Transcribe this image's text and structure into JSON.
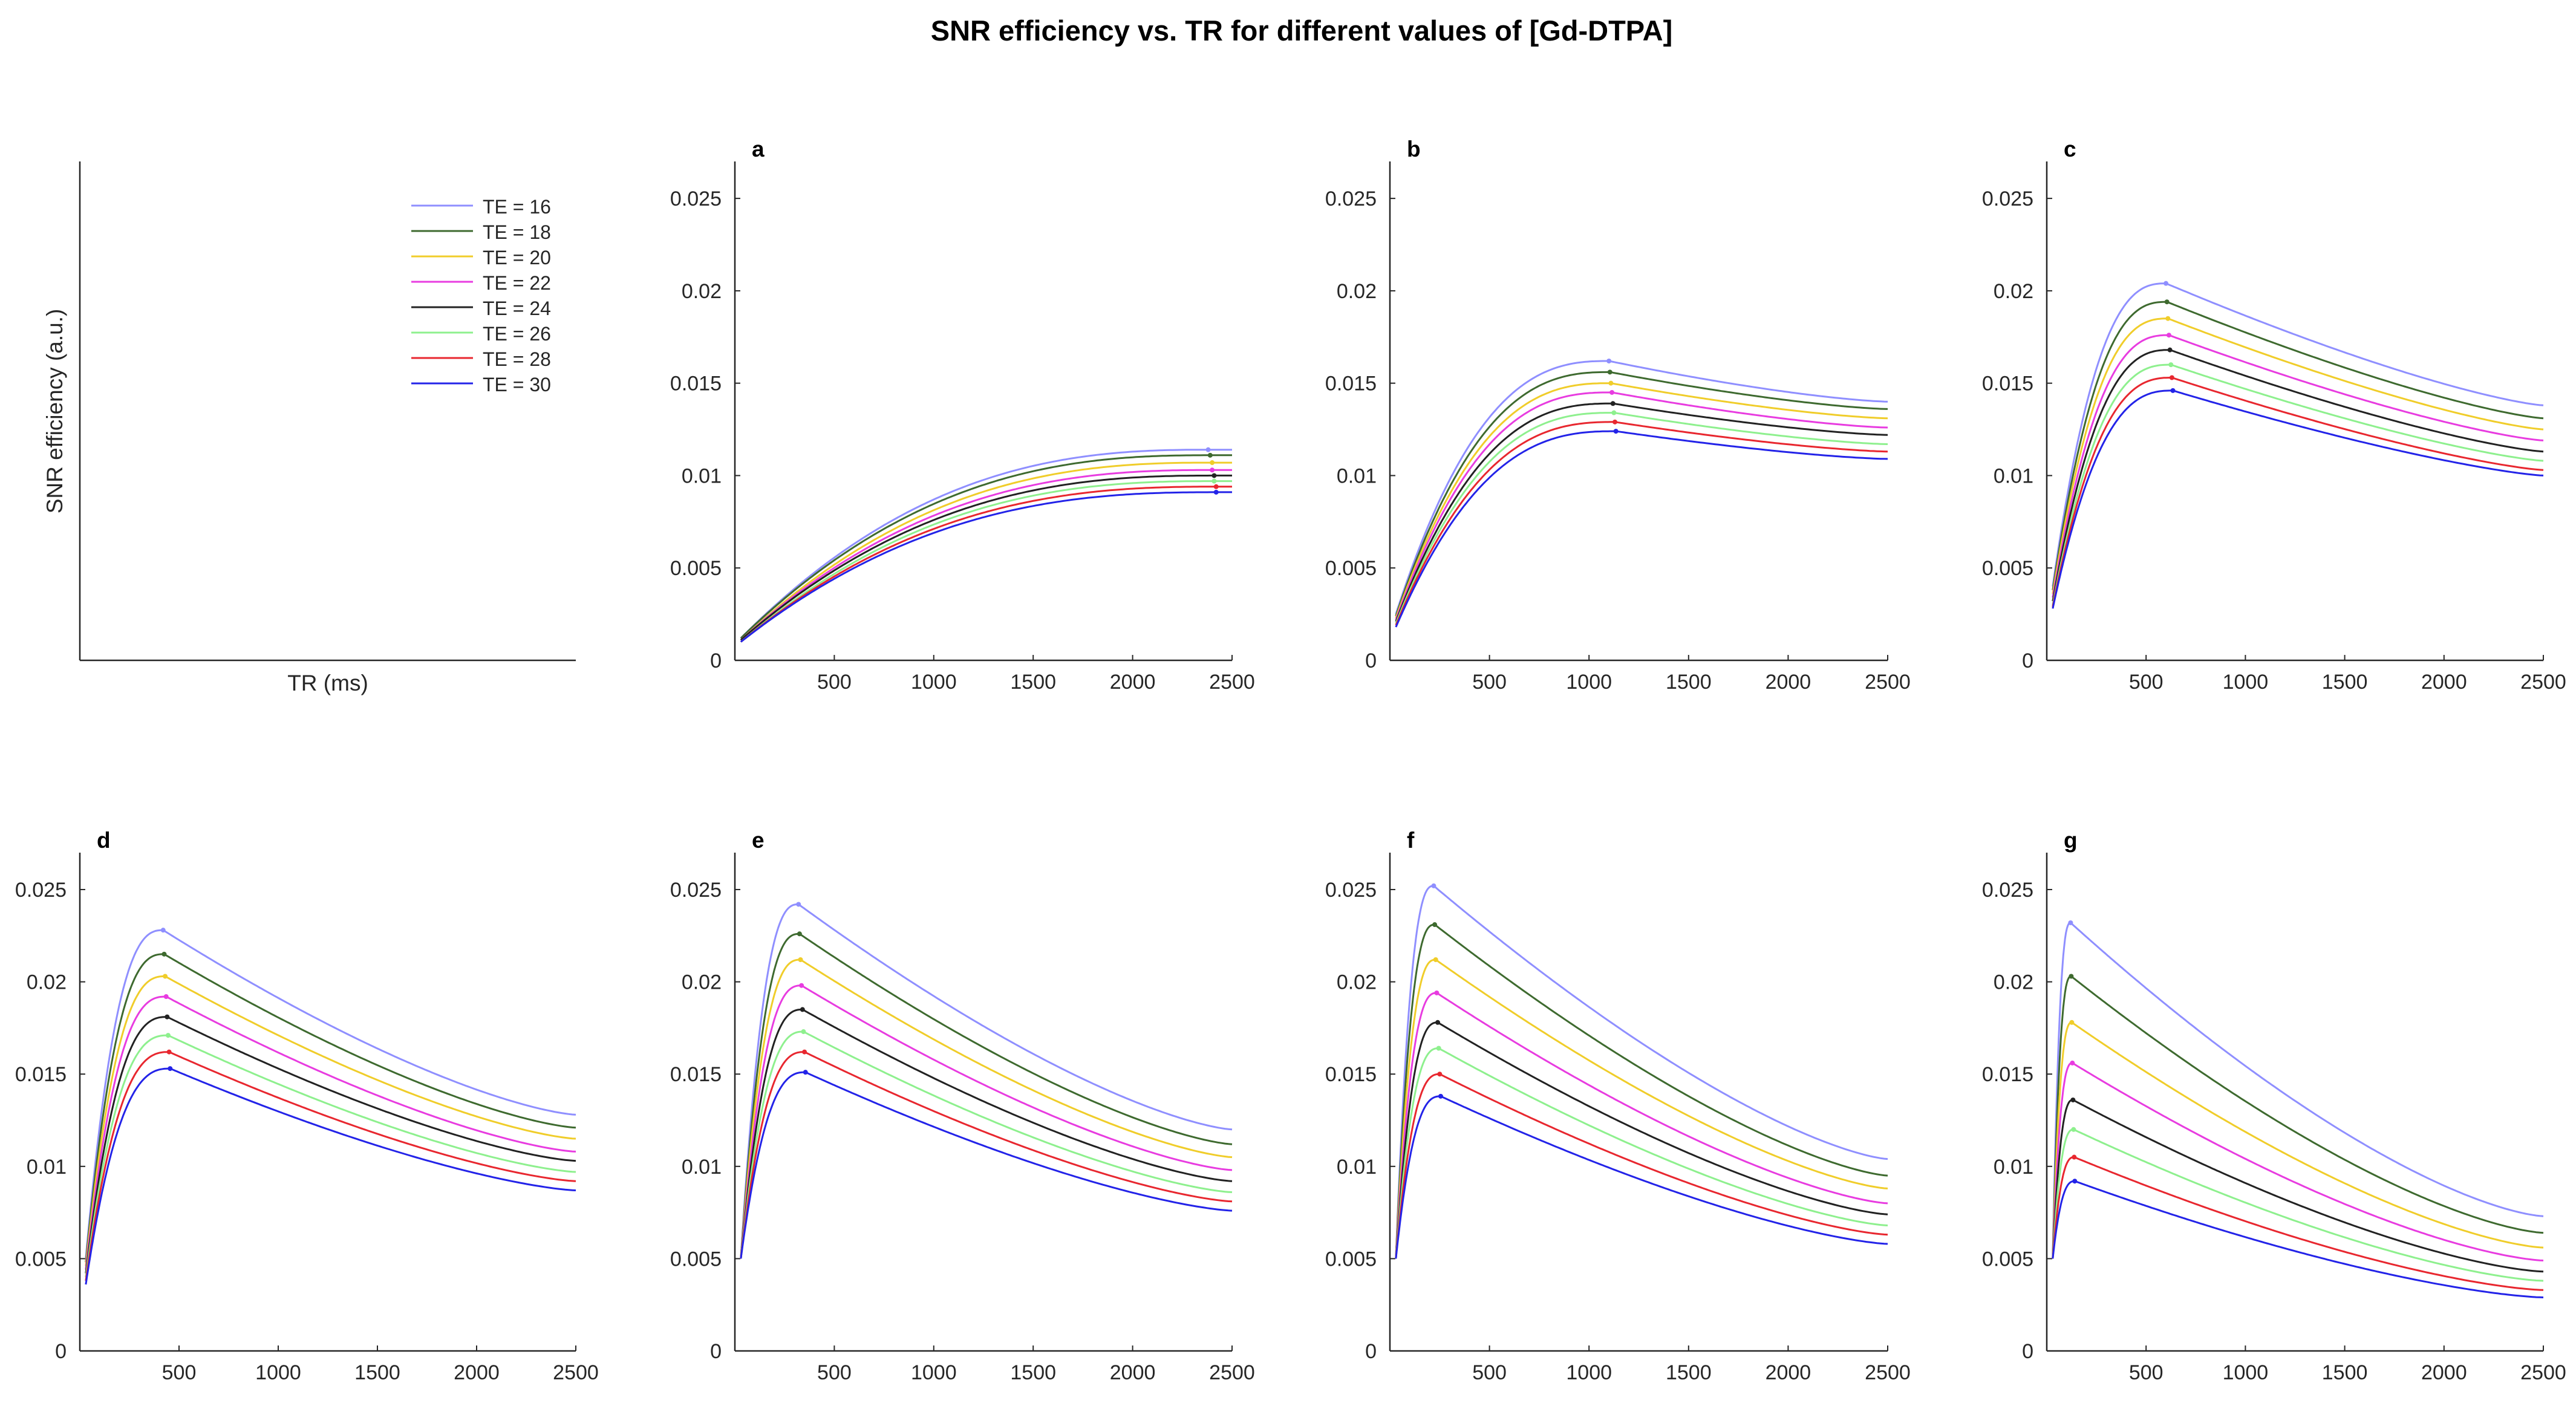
{
  "title": "SNR efficiency vs. TR for different values of [Gd-DTPA]",
  "legend_panel": {
    "ylabel": "SNR efficiency (a.u.)",
    "xlabel": "TR (ms)",
    "position": "top-right"
  },
  "series": [
    {
      "name": "TE = 16",
      "color": "#8f8fff"
    },
    {
      "name": "TE = 18",
      "color": "#3e6a2f"
    },
    {
      "name": "TE = 20",
      "color": "#f0cd2a"
    },
    {
      "name": "TE = 22",
      "color": "#e83ce0"
    },
    {
      "name": "TE = 24",
      "color": "#222222"
    },
    {
      "name": "TE = 26",
      "color": "#8ef08e"
    },
    {
      "name": "TE = 28",
      "color": "#e8272f"
    },
    {
      "name": "TE = 30",
      "color": "#2323e8"
    }
  ],
  "chart_data": [
    {
      "type": "line",
      "label": "a",
      "xlim": [
        0,
        2500
      ],
      "ylim": [
        0,
        0.027
      ],
      "xticks": [
        "500",
        "1000",
        "1500",
        "2000",
        "2500"
      ],
      "yticks": [
        "0",
        "0.005",
        "0.01",
        "0.015",
        "0.02",
        "0.025"
      ],
      "peak_tr": [
        2380,
        2390,
        2400,
        2400,
        2410,
        2410,
        2420,
        2420
      ],
      "peak_values": [
        0.0114,
        0.0111,
        0.0107,
        0.0103,
        0.01,
        0.0097,
        0.0094,
        0.0091
      ],
      "start_values": [
        0.0012,
        0.0012,
        0.0011,
        0.0011,
        0.0011,
        0.001,
        0.001,
        0.001
      ],
      "end_values": [
        0.0114,
        0.0111,
        0.0107,
        0.0103,
        0.01,
        0.0097,
        0.0094,
        0.0091
      ],
      "rise": 2.5,
      "fall": 1.0
    },
    {
      "type": "line",
      "label": "b",
      "xlim": [
        0,
        2500
      ],
      "ylim": [
        0,
        0.027
      ],
      "xticks": [
        "500",
        "1000",
        "1500",
        "2000",
        "2500"
      ],
      "yticks": [
        "0",
        "0.005",
        "0.01",
        "0.015",
        "0.02",
        "0.025"
      ],
      "peak_tr": [
        1100,
        1105,
        1110,
        1115,
        1120,
        1125,
        1130,
        1135
      ],
      "peak_values": [
        0.0162,
        0.0156,
        0.015,
        0.0145,
        0.0139,
        0.0134,
        0.0129,
        0.0124
      ],
      "start_values": [
        0.0025,
        0.0024,
        0.0023,
        0.0022,
        0.0021,
        0.002,
        0.0019,
        0.0018
      ],
      "end_values": [
        0.014,
        0.0136,
        0.0131,
        0.0126,
        0.0122,
        0.0117,
        0.0113,
        0.0109
      ],
      "rise": 2.6,
      "fall": 1.4
    },
    {
      "type": "line",
      "label": "c",
      "xlim": [
        0,
        2500
      ],
      "ylim": [
        0,
        0.027
      ],
      "xticks": [
        "500",
        "1000",
        "1500",
        "2000",
        "2500"
      ],
      "yticks": [
        "0",
        "0.005",
        "0.01",
        "0.015",
        "0.02",
        "0.025"
      ],
      "peak_tr": [
        600,
        605,
        610,
        615,
        620,
        625,
        630,
        635
      ],
      "peak_values": [
        0.0204,
        0.0194,
        0.0185,
        0.0176,
        0.0168,
        0.016,
        0.0153,
        0.0146
      ],
      "start_values": [
        0.004,
        0.0038,
        0.0036,
        0.0034,
        0.0032,
        0.003,
        0.0029,
        0.0028
      ],
      "end_values": [
        0.0138,
        0.0131,
        0.0125,
        0.0119,
        0.0113,
        0.0108,
        0.0103,
        0.01
      ],
      "rise": 2.6,
      "fall": 1.3
    },
    {
      "type": "line",
      "label": "d",
      "xlim": [
        0,
        2500
      ],
      "ylim": [
        0,
        0.027
      ],
      "xticks": [
        "500",
        "1000",
        "1500",
        "2000",
        "2500"
      ],
      "yticks": [
        "0",
        "0.005",
        "0.01",
        "0.015",
        "0.02",
        "0.025"
      ],
      "peak_tr": [
        420,
        425,
        430,
        435,
        440,
        445,
        450,
        455
      ],
      "peak_values": [
        0.0228,
        0.0215,
        0.0203,
        0.0192,
        0.0181,
        0.0171,
        0.0162,
        0.0153
      ],
      "start_values": [
        0.005,
        0.0048,
        0.0046,
        0.0044,
        0.0042,
        0.004,
        0.0038,
        0.0036
      ],
      "end_values": [
        0.0128,
        0.0121,
        0.0115,
        0.0108,
        0.0103,
        0.0097,
        0.0092,
        0.0087
      ],
      "rise": 2.6,
      "fall": 1.4
    },
    {
      "type": "line",
      "label": "e",
      "xlim": [
        0,
        2500
      ],
      "ylim": [
        0,
        0.027
      ],
      "xticks": [
        "500",
        "1000",
        "1500",
        "2000",
        "2500"
      ],
      "yticks": [
        "0",
        "0.005",
        "0.01",
        "0.015",
        "0.02",
        "0.025"
      ],
      "peak_tr": [
        320,
        325,
        330,
        335,
        340,
        345,
        350,
        355
      ],
      "peak_values": [
        0.0242,
        0.0226,
        0.0212,
        0.0198,
        0.0185,
        0.0173,
        0.0162,
        0.0151
      ],
      "start_values": [
        0.005,
        0.005,
        0.005,
        0.005,
        0.005,
        0.005,
        0.005,
        0.005
      ],
      "end_values": [
        0.012,
        0.0112,
        0.0105,
        0.0098,
        0.0092,
        0.0086,
        0.0081,
        0.0076
      ],
      "rise": 2.6,
      "fall": 1.4
    },
    {
      "type": "line",
      "label": "f",
      "xlim": [
        0,
        2500
      ],
      "ylim": [
        0,
        0.027
      ],
      "xticks": [
        "500",
        "1000",
        "1500",
        "2000",
        "2500"
      ],
      "yticks": [
        "0",
        "0.005",
        "0.01",
        "0.015",
        "0.02",
        "0.025"
      ],
      "peak_tr": [
        220,
        225,
        230,
        235,
        240,
        245,
        250,
        255
      ],
      "peak_values": [
        0.0252,
        0.0231,
        0.0212,
        0.0194,
        0.0178,
        0.0164,
        0.015,
        0.0138
      ],
      "start_values": [
        0.005,
        0.005,
        0.005,
        0.005,
        0.005,
        0.005,
        0.005,
        0.005
      ],
      "end_values": [
        0.0104,
        0.0095,
        0.0088,
        0.008,
        0.0074,
        0.0068,
        0.0063,
        0.0058
      ],
      "rise": 2.6,
      "fall": 1.4
    },
    {
      "type": "line",
      "label": "g",
      "xlim": [
        0,
        2500
      ],
      "ylim": [
        0,
        0.027
      ],
      "xticks": [
        "500",
        "1000",
        "1500",
        "2000",
        "2500"
      ],
      "yticks": [
        "0",
        "0.005",
        "0.01",
        "0.015",
        "0.02",
        "0.025"
      ],
      "peak_tr": [
        120,
        123,
        126,
        129,
        132,
        135,
        138,
        141
      ],
      "peak_values": [
        0.0232,
        0.0203,
        0.0178,
        0.0156,
        0.0136,
        0.012,
        0.0105,
        0.0092
      ],
      "start_values": [
        0.005,
        0.005,
        0.005,
        0.005,
        0.005,
        0.005,
        0.005,
        0.005
      ],
      "end_values": [
        0.0073,
        0.0064,
        0.0056,
        0.0049,
        0.0043,
        0.0038,
        0.0033,
        0.0029
      ],
      "rise": 2.6,
      "fall": 1.45
    }
  ]
}
